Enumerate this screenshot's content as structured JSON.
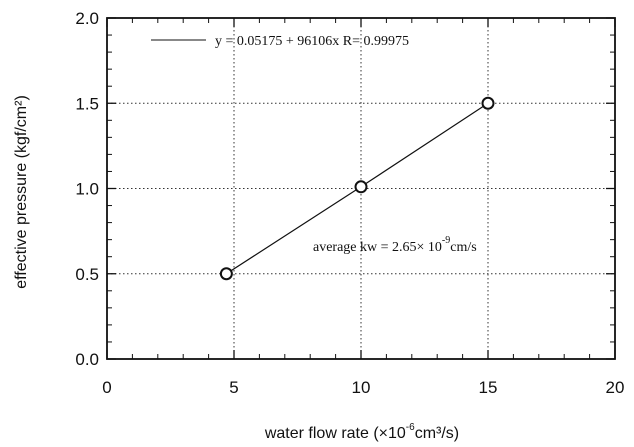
{
  "chart_data": {
    "type": "scatter",
    "xlabel_prefix": "water flow rate (×10",
    "xlabel_exp": "-6",
    "xlabel_suffix": "cm³/s)",
    "ylabel": "effective pressure (kgf/cm²)",
    "xlim": [
      0,
      20
    ],
    "ylim": [
      0.0,
      2.0
    ],
    "x_ticks": [
      0,
      5,
      10,
      15,
      20
    ],
    "x_tick_labels": [
      "0",
      "5",
      "10",
      "15",
      "20"
    ],
    "y_ticks": [
      0.0,
      0.5,
      1.0,
      1.5,
      2.0
    ],
    "y_tick_labels": [
      "0.0",
      "0.5",
      "1.0",
      "1.5",
      "2.0"
    ],
    "grid": true,
    "series": [
      {
        "x": [
          4.7,
          10.0,
          15.0
        ],
        "y": [
          0.5,
          1.01,
          1.5
        ],
        "marker": "open-circle",
        "line": true
      }
    ],
    "legend": {
      "text": "y = 0.05175 + 96106x R= 0.99975",
      "placement": "top"
    },
    "annotation": {
      "prefix": "average kw = 2.65× 10",
      "exp": "-9",
      "suffix": "cm/s"
    }
  }
}
